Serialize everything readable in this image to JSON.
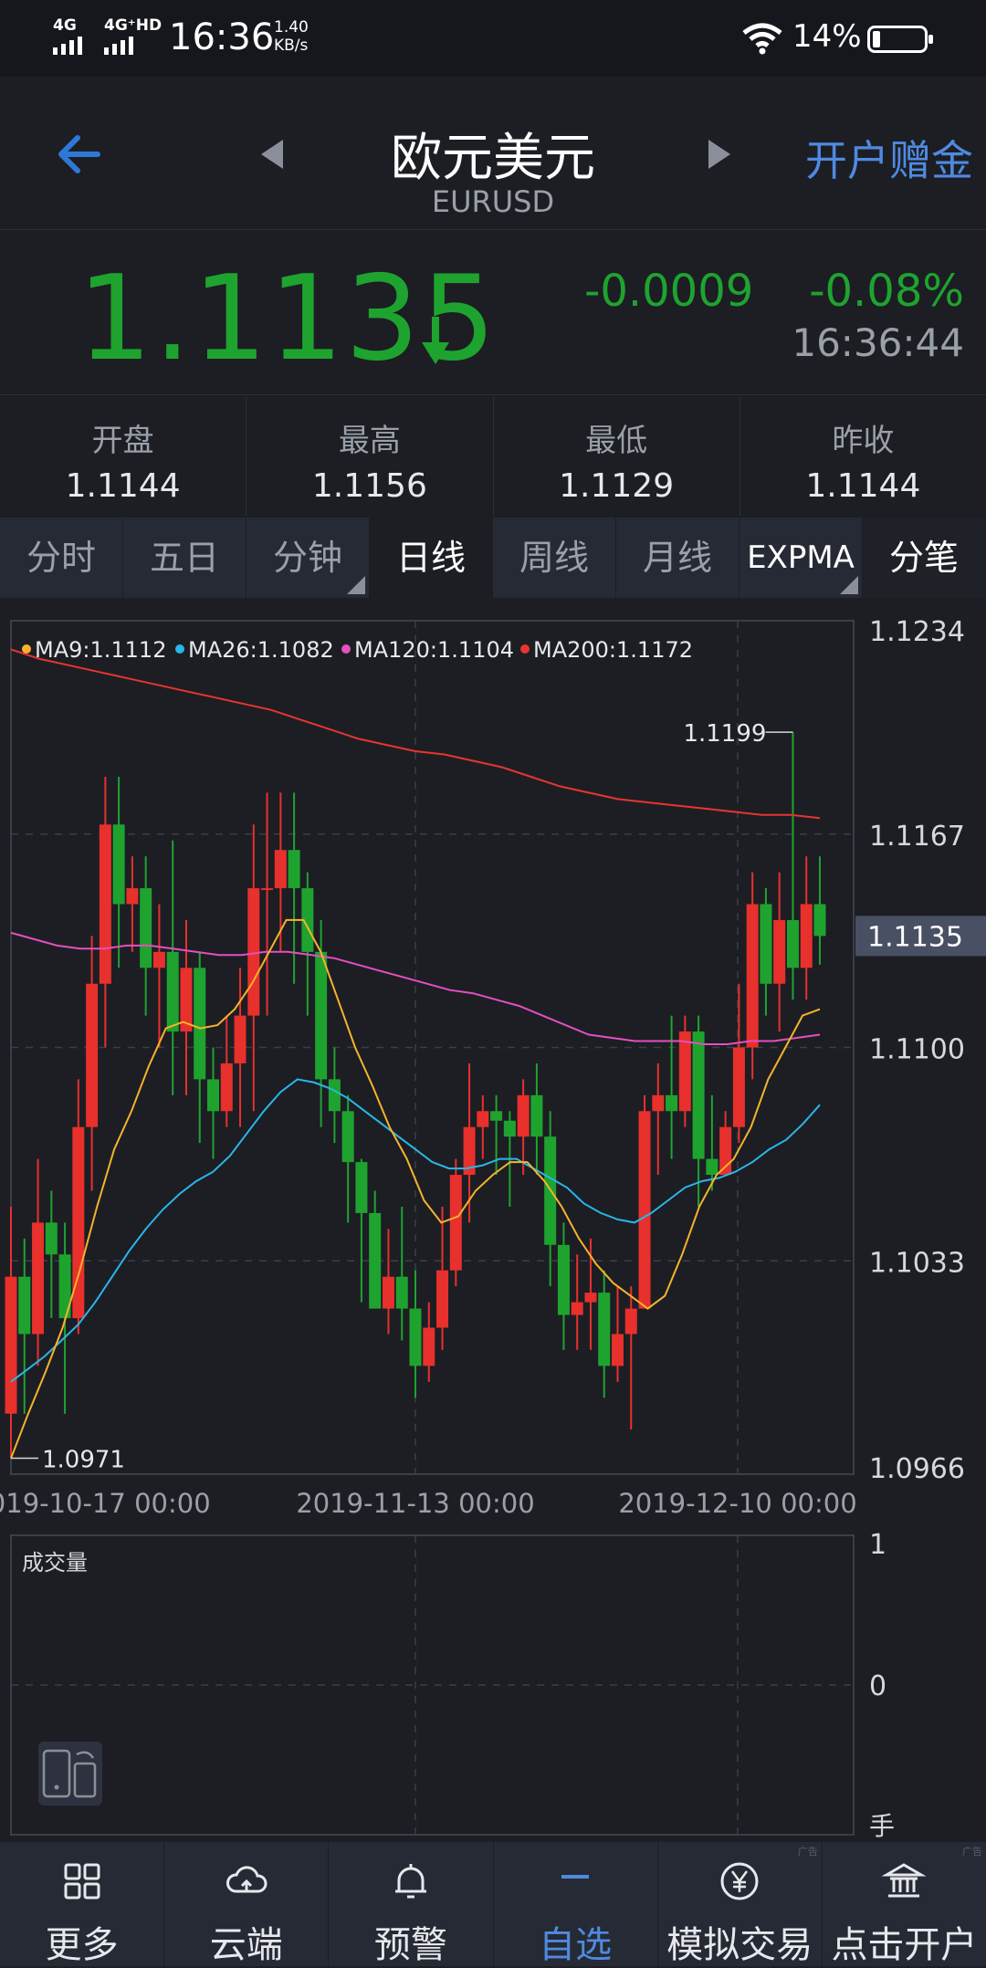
{
  "status_bar": {
    "network_1": "4G",
    "network_2": "4G⁺HD",
    "time": "16:36",
    "speed_value": "1.40",
    "speed_unit": "KB/s",
    "battery": "14%",
    "battery_level": 0.14
  },
  "header": {
    "title": "欧元美元",
    "subtitle": "EURUSD",
    "open_account": "开户赠金"
  },
  "quote": {
    "price": "1.1135",
    "change": "-0.0009",
    "change_pct": "-0.08%",
    "time": "16:36:44",
    "direction": "down"
  },
  "stats": [
    {
      "label": "开盘",
      "value": "1.1144"
    },
    {
      "label": "最高",
      "value": "1.1156"
    },
    {
      "label": "最低",
      "value": "1.1129"
    },
    {
      "label": "昨收",
      "value": "1.1144"
    }
  ],
  "tabs": [
    "分时",
    "五日",
    "分钟",
    "日线",
    "周线",
    "月线",
    "EXPMA",
    "分笔"
  ],
  "active_tab": "日线",
  "chart_data": {
    "type": "candlestick",
    "price_axis": {
      "ticks": [
        "1.1234",
        "1.1167",
        "1.1100",
        "1.1033",
        "1.0966"
      ],
      "min": 1.0966,
      "max": 1.1234
    },
    "current_price_label": "1.1135",
    "date_ticks": [
      "2019-10-17 00:00",
      "2019-11-13 00:00",
      "2019-12-10 00:00"
    ],
    "high_annotation": "1.1199",
    "low_annotation": "1.0971",
    "legend": [
      {
        "label": "MA9:1.1112",
        "color": "#f7b32b"
      },
      {
        "label": "MA26:1.1082",
        "color": "#29b6e8"
      },
      {
        "label": "MA120:1.1104",
        "color": "#e54fbf"
      },
      {
        "label": "MA200:1.1172",
        "color": "#e8352f"
      }
    ],
    "up_color": "#e8302c",
    "down_color": "#1fa32f",
    "candles": [
      [
        1.0985,
        1.1028,
        1.0971,
        1.105
      ],
      [
        1.1028,
        1.101,
        1.0985,
        1.104
      ],
      [
        1.101,
        1.1045,
        1.1,
        1.1065
      ],
      [
        1.1045,
        1.1035,
        1.1015,
        1.1055
      ],
      [
        1.1035,
        1.1015,
        1.0985,
        1.1045
      ],
      [
        1.1015,
        1.1075,
        1.101,
        1.109
      ],
      [
        1.1075,
        1.112,
        1.1055,
        1.1135
      ],
      [
        1.112,
        1.117,
        1.11,
        1.1185
      ],
      [
        1.117,
        1.1145,
        1.1125,
        1.1185
      ],
      [
        1.1145,
        1.115,
        1.113,
        1.116
      ],
      [
        1.115,
        1.1125,
        1.111,
        1.116
      ],
      [
        1.1125,
        1.113,
        1.11,
        1.1145
      ],
      [
        1.113,
        1.1105,
        1.1085,
        1.1165
      ],
      [
        1.1105,
        1.1125,
        1.1085,
        1.114
      ],
      [
        1.1125,
        1.109,
        1.107,
        1.113
      ],
      [
        1.109,
        1.108,
        1.1065,
        1.11
      ],
      [
        1.108,
        1.1095,
        1.1075,
        1.111
      ],
      [
        1.1095,
        1.111,
        1.1075,
        1.1125
      ],
      [
        1.111,
        1.115,
        1.108,
        1.117
      ],
      [
        1.115,
        1.115,
        1.111,
        1.118
      ],
      [
        1.115,
        1.1162,
        1.113,
        1.118
      ],
      [
        1.1162,
        1.115,
        1.112,
        1.118
      ],
      [
        1.115,
        1.113,
        1.111,
        1.1155
      ],
      [
        1.113,
        1.109,
        1.1075,
        1.114
      ],
      [
        1.109,
        1.108,
        1.107,
        1.11
      ],
      [
        1.108,
        1.1064,
        1.1045,
        1.1085
      ],
      [
        1.1064,
        1.1048,
        1.102,
        1.1065
      ],
      [
        1.1048,
        1.1018,
        1.1018,
        1.1055
      ],
      [
        1.1018,
        1.1028,
        1.101,
        1.1043
      ],
      [
        1.1028,
        1.1018,
        1.1008,
        1.105
      ],
      [
        1.1018,
        1.1,
        1.099,
        1.103
      ],
      [
        1.1,
        1.1012,
        1.0995,
        1.102
      ],
      [
        1.1012,
        1.103,
        1.1005,
        1.105
      ],
      [
        1.103,
        1.106,
        1.1025,
        1.1065
      ],
      [
        1.106,
        1.1075,
        1.1045,
        1.1095
      ],
      [
        1.1075,
        1.108,
        1.1065,
        1.1085
      ],
      [
        1.108,
        1.1077,
        1.106,
        1.1085
      ],
      [
        1.1077,
        1.1072,
        1.105,
        1.108
      ],
      [
        1.1072,
        1.1085,
        1.106,
        1.109
      ],
      [
        1.1085,
        1.1072,
        1.106,
        1.1095
      ],
      [
        1.1072,
        1.1038,
        1.1025,
        1.108
      ],
      [
        1.1038,
        1.1016,
        1.1005,
        1.1045
      ],
      [
        1.1016,
        1.102,
        1.1005,
        1.1035
      ],
      [
        1.102,
        1.1023,
        1.1005,
        1.104
      ],
      [
        1.1023,
        1.1,
        1.099,
        1.103
      ],
      [
        1.1,
        1.101,
        1.0995,
        1.1025
      ],
      [
        1.101,
        1.1018,
        1.098,
        1.1025
      ],
      [
        1.1018,
        1.108,
        1.1018,
        1.1085
      ],
      [
        1.108,
        1.1085,
        1.106,
        1.1095
      ],
      [
        1.1085,
        1.108,
        1.1065,
        1.111
      ],
      [
        1.108,
        1.1105,
        1.1075,
        1.111
      ],
      [
        1.1105,
        1.1065,
        1.105,
        1.111
      ],
      [
        1.1065,
        1.106,
        1.1055,
        1.1085
      ],
      [
        1.106,
        1.1075,
        1.106,
        1.108
      ],
      [
        1.1075,
        1.11,
        1.107,
        1.112
      ],
      [
        1.11,
        1.1145,
        1.109,
        1.1155
      ],
      [
        1.1145,
        1.112,
        1.111,
        1.115
      ],
      [
        1.112,
        1.114,
        1.1105,
        1.1155
      ],
      [
        1.114,
        1.1125,
        1.1115,
        1.1199
      ],
      [
        1.1125,
        1.1145,
        1.1115,
        1.116
      ],
      [
        1.1145,
        1.1135,
        1.1126,
        1.116
      ]
    ],
    "ma9": [
      1.0971,
      1.0985,
      1.0998,
      1.1012,
      1.103,
      1.105,
      1.1068,
      1.108,
      1.1094,
      1.1106,
      1.1108,
      1.1106,
      1.1107,
      1.1112,
      1.112,
      1.113,
      1.114,
      1.114,
      1.113,
      1.1115,
      1.11,
      1.1088,
      1.1075,
      1.1065,
      1.1052,
      1.1045,
      1.1047,
      1.1055,
      1.106,
      1.1064,
      1.1064,
      1.1058,
      1.105,
      1.104,
      1.1032,
      1.1026,
      1.1022,
      1.1018,
      1.1022,
      1.1035,
      1.105,
      1.106,
      1.1065,
      1.1075,
      1.109,
      1.11,
      1.111,
      1.1112
    ],
    "ma26": [
      1.0995,
      1.0999,
      1.1003,
      1.1008,
      1.1013,
      1.102,
      1.1028,
      1.1036,
      1.1043,
      1.1049,
      1.1054,
      1.1058,
      1.1061,
      1.1066,
      1.1073,
      1.108,
      1.1086,
      1.109,
      1.1089,
      1.1087,
      1.1084,
      1.108,
      1.1076,
      1.1072,
      1.1068,
      1.1064,
      1.1062,
      1.1062,
      1.1063,
      1.1065,
      1.1065,
      1.1062,
      1.1059,
      1.1056,
      1.1051,
      1.1048,
      1.1046,
      1.1045,
      1.1048,
      1.1052,
      1.1056,
      1.1058,
      1.1059,
      1.1061,
      1.1064,
      1.1068,
      1.1071,
      1.1076,
      1.1082
    ],
    "ma120": [
      1.1136,
      1.1134,
      1.1132,
      1.1131,
      1.1131,
      1.1132,
      1.1132,
      1.1131,
      1.113,
      1.1129,
      1.1129,
      1.113,
      1.113,
      1.1129,
      1.1128,
      1.1126,
      1.1124,
      1.1122,
      1.112,
      1.1118,
      1.1117,
      1.1115,
      1.1113,
      1.111,
      1.1107,
      1.1104,
      1.1103,
      1.1102,
      1.1102,
      1.1102,
      1.1101,
      1.1101,
      1.1102,
      1.1102,
      1.1103,
      1.1104
    ],
    "ma200": [
      1.1225,
      1.1222,
      1.122,
      1.1218,
      1.1216,
      1.1214,
      1.1212,
      1.121,
      1.1208,
      1.1206,
      1.1203,
      1.12,
      1.1197,
      1.1195,
      1.1193,
      1.1192,
      1.119,
      1.1188,
      1.1185,
      1.1182,
      1.118,
      1.1178,
      1.1177,
      1.1176,
      1.1175,
      1.1174,
      1.1173,
      1.1173,
      1.1172
    ],
    "volume": {
      "title": "成交量",
      "ticks": [
        "1",
        "0"
      ],
      "unit": "手"
    }
  },
  "bottom_nav": [
    {
      "label": "更多",
      "icon": "grid-icon",
      "ad": ""
    },
    {
      "label": "云端",
      "icon": "cloud-icon",
      "ad": ""
    },
    {
      "label": "预警",
      "icon": "bell-icon",
      "ad": ""
    },
    {
      "label": "自选",
      "icon": "minus-icon",
      "ad": ""
    },
    {
      "label": "模拟交易",
      "icon": "yen-icon",
      "ad": "广告"
    },
    {
      "label": "点击开户",
      "icon": "bank-icon",
      "ad": "广告"
    }
  ]
}
